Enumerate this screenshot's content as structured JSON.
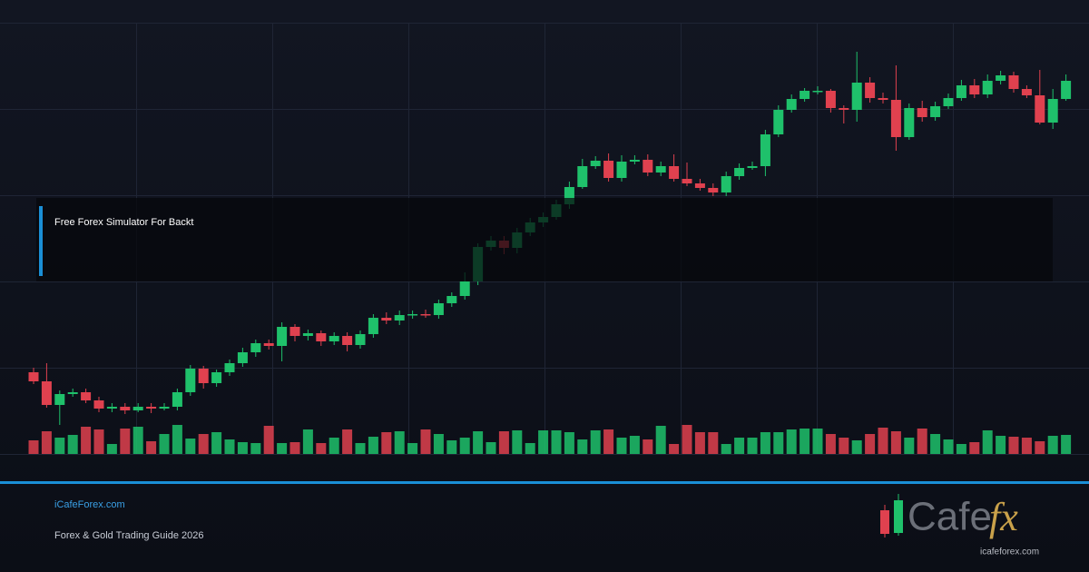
{
  "chart_data": {
    "type": "candlestick",
    "open": [
      90,
      80,
      54,
      66,
      68,
      59,
      50,
      52,
      48,
      52,
      50,
      52,
      68,
      94,
      78,
      90,
      100,
      112,
      122,
      119,
      140,
      130,
      133,
      124,
      130,
      120,
      132,
      150,
      147,
      153,
      154,
      153,
      166,
      174,
      190,
      228,
      235,
      227,
      244,
      255,
      261,
      275,
      294,
      317,
      323,
      304,
      322,
      324,
      310,
      317,
      303,
      298,
      293,
      288,
      306,
      315,
      317,
      352,
      379,
      391,
      400,
      400,
      381,
      379,
      409,
      392,
      390,
      349,
      381,
      371,
      383,
      392,
      406,
      396,
      411,
      417,
      402,
      395,
      365,
      391
    ],
    "close": [
      80,
      54,
      66,
      68,
      59,
      50,
      52,
      48,
      52,
      50,
      52,
      68,
      94,
      78,
      90,
      100,
      112,
      122,
      119,
      140,
      130,
      133,
      124,
      130,
      120,
      132,
      150,
      147,
      153,
      154,
      153,
      166,
      174,
      190,
      228,
      235,
      227,
      244,
      255,
      261,
      275,
      294,
      317,
      323,
      304,
      322,
      324,
      310,
      317,
      303,
      298,
      293,
      288,
      306,
      315,
      317,
      352,
      379,
      391,
      400,
      400,
      381,
      379,
      409,
      392,
      390,
      349,
      381,
      371,
      383,
      392,
      406,
      396,
      411,
      417,
      402,
      395,
      365,
      391,
      411
    ],
    "high": [
      95,
      100,
      70,
      72,
      72,
      63,
      56,
      56,
      56,
      56,
      56,
      72,
      98,
      97,
      93,
      104,
      117,
      126,
      126,
      145,
      143,
      137,
      136,
      134,
      134,
      136,
      154,
      156,
      158,
      158,
      159,
      170,
      178,
      200,
      232,
      240,
      240,
      249,
      260,
      266,
      280,
      300,
      325,
      328,
      331,
      329,
      329,
      330,
      322,
      330,
      321,
      303,
      298,
      311,
      320,
      322,
      357,
      384,
      396,
      403,
      405,
      402,
      384,
      443,
      415,
      398,
      428,
      386,
      389,
      388,
      397,
      412,
      413,
      418,
      422,
      421,
      406,
      423,
      402,
      418
    ],
    "low": [
      77,
      51,
      32,
      63,
      56,
      46,
      46,
      44,
      46,
      45,
      48,
      48,
      64,
      72,
      74,
      86,
      96,
      107,
      115,
      102,
      124,
      125,
      119,
      120,
      113,
      116,
      128,
      143,
      142,
      149,
      150,
      149,
      162,
      170,
      186,
      224,
      220,
      221,
      240,
      250,
      258,
      270,
      292,
      314,
      300,
      300,
      319,
      306,
      306,
      300,
      295,
      290,
      284,
      284,
      302,
      313,
      306,
      349,
      376,
      388,
      396,
      376,
      364,
      366,
      387,
      386,
      334,
      346,
      366,
      367,
      380,
      389,
      392,
      392,
      407,
      398,
      392,
      363,
      358,
      389
    ],
    "volume": [
      15,
      25,
      18,
      21,
      30,
      27,
      11,
      28,
      30,
      14,
      22,
      32,
      17,
      22,
      24,
      16,
      13,
      12,
      31,
      12,
      13,
      27,
      12,
      18,
      27,
      12,
      19,
      24,
      25,
      12,
      27,
      22,
      15,
      18,
      25,
      13,
      25,
      26,
      12,
      26,
      26,
      24,
      16,
      26,
      27,
      18,
      20,
      16,
      31,
      11,
      32,
      24,
      24,
      11,
      18,
      18,
      24,
      24,
      27,
      28,
      28,
      22,
      18,
      15,
      22,
      29,
      25,
      18,
      28,
      22,
      16,
      11,
      13,
      26,
      20,
      19,
      18,
      14,
      20,
      21
    ],
    "ylim": [
      0,
      475
    ],
    "volume_lim": [
      0,
      32
    ],
    "up_color": "#1fc16b",
    "down_color": "#e0414f"
  },
  "overlay": {
    "title": "Free Forex Simulator For Backt"
  },
  "footer": {
    "site": "iCafeForex.com",
    "tagline": "Forex & Gold Trading Guide 2026"
  },
  "logo": {
    "word": "Cafe",
    "mark": "fx",
    "url": "icafeforex.com"
  }
}
